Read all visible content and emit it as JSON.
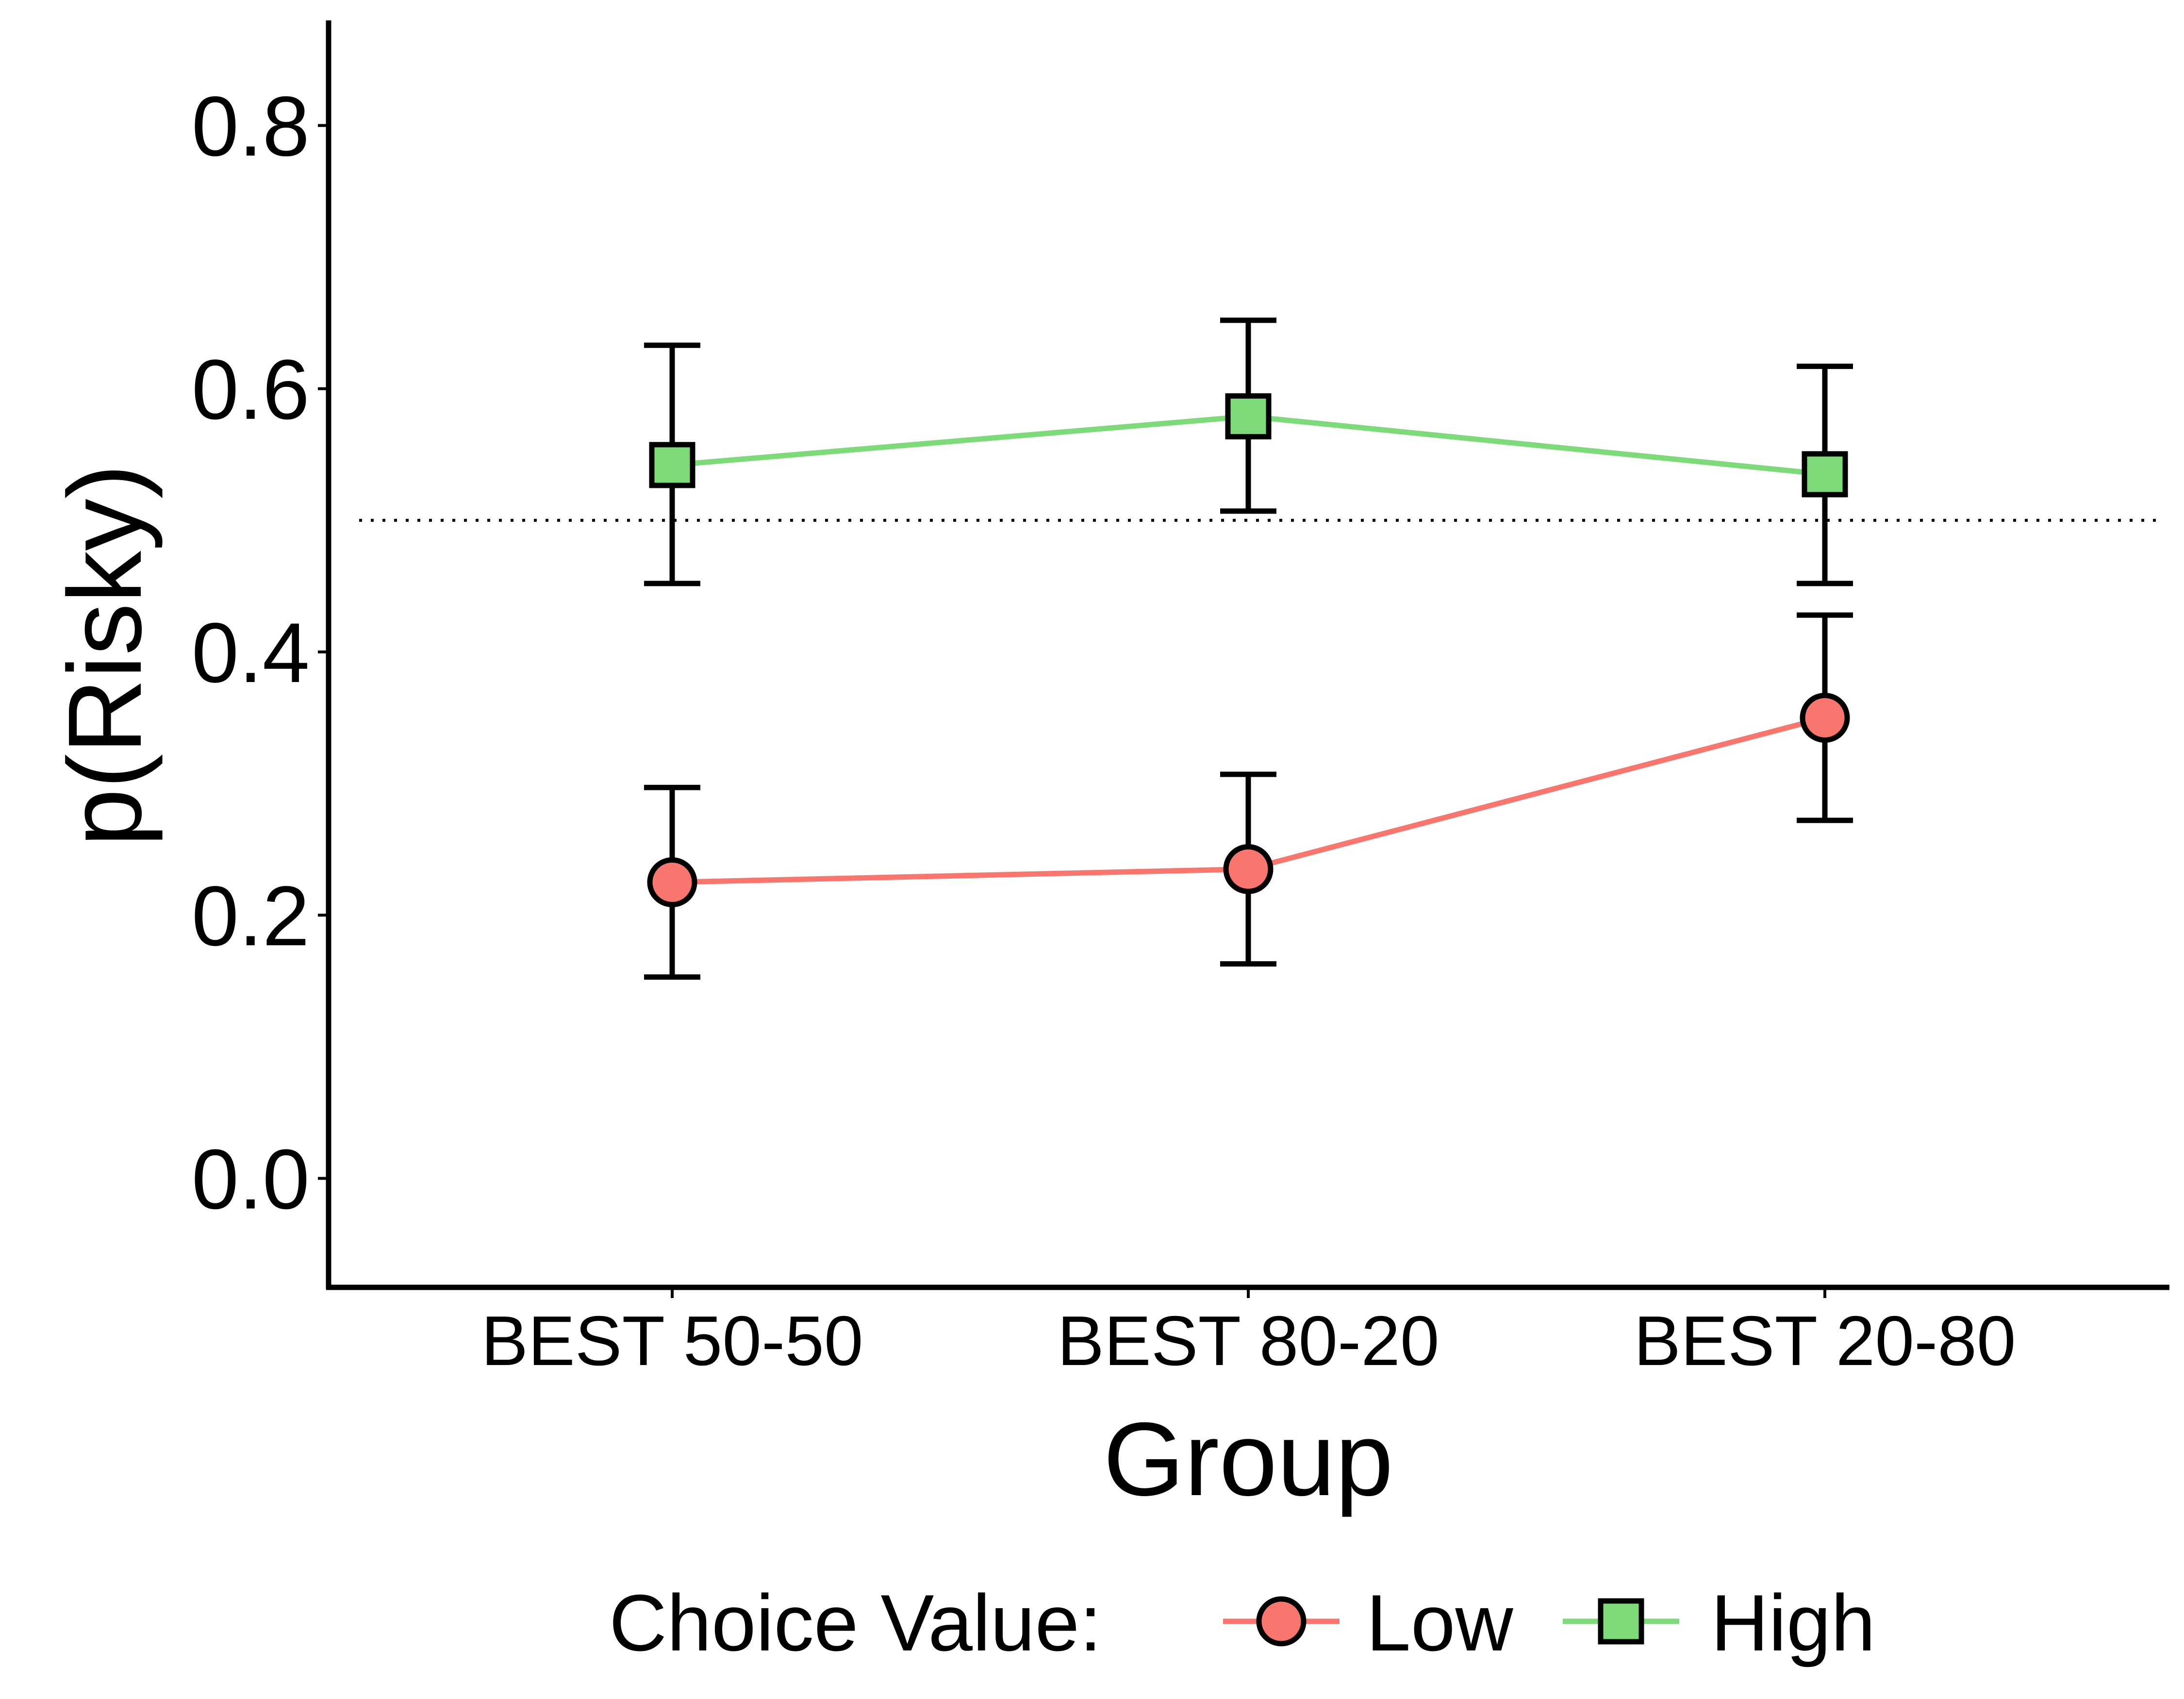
{
  "chart_data": {
    "type": "line",
    "title": "",
    "xlabel": "Group",
    "ylabel": "p(Risky)",
    "categories": [
      "BEST 50-50",
      "BEST 80-20",
      "BEST 20-80"
    ],
    "ylim": [
      -0.04,
      0.84
    ],
    "yticks": [
      0.0,
      0.2,
      0.4,
      0.6,
      0.8
    ],
    "ytick_labels": [
      "0.0",
      "0.2",
      "0.4",
      "0.6",
      "0.8"
    ],
    "reference_line": {
      "y": 0.5,
      "style": "dotted"
    },
    "grid": false,
    "legend": {
      "title": "Choice Value:",
      "position": "bottom"
    },
    "series": [
      {
        "name": "Low",
        "color": "#F8766D",
        "marker": "circle",
        "values": [
          0.225,
          0.235,
          0.35
        ],
        "error_low": [
          0.153,
          0.163,
          0.272
        ],
        "error_high": [
          0.297,
          0.307,
          0.428
        ]
      },
      {
        "name": "High",
        "color": "#7CDB78",
        "marker": "square",
        "values": [
          0.542,
          0.579,
          0.535
        ],
        "error_low": [
          0.452,
          0.507,
          0.452
        ],
        "error_high": [
          0.633,
          0.652,
          0.617
        ]
      }
    ]
  }
}
